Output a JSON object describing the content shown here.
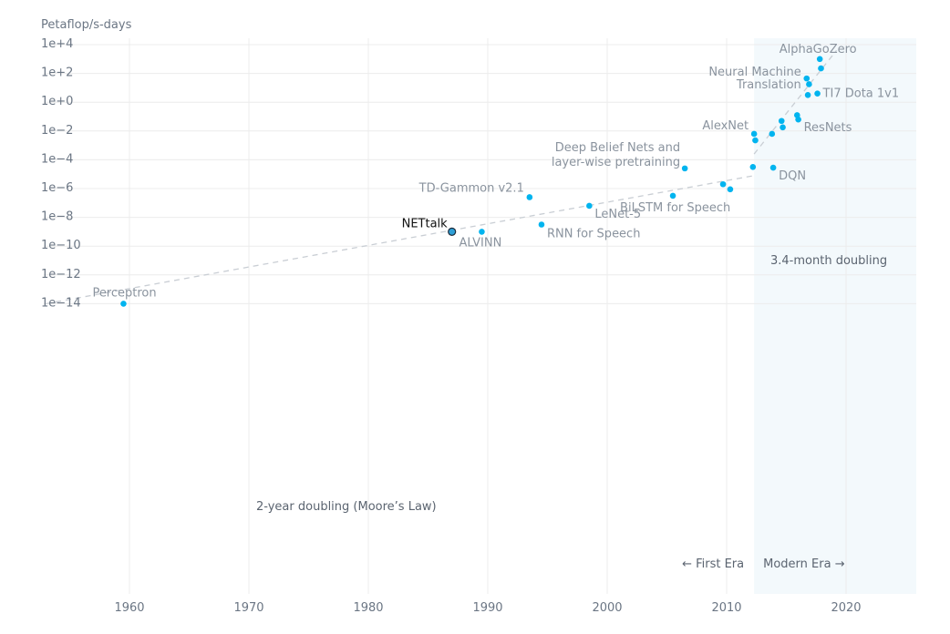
{
  "chart_data": {
    "type": "scatter",
    "y_unit_label": "Petaflop/s-days",
    "y_scale": "log10",
    "xlim": [
      1955,
      2026
    ],
    "ylim_exponent": [
      -14.5,
      4.2
    ],
    "x_ticks": [
      1960,
      1970,
      1980,
      1990,
      2000,
      2010,
      2020
    ],
    "x_tick_labels": [
      "1960",
      "1970",
      "1980",
      "1990",
      "2000",
      "2010",
      "2020"
    ],
    "y_tick_exponents": [
      4,
      2,
      0,
      -2,
      -4,
      -6,
      -8,
      -10,
      -12,
      -14
    ],
    "y_tick_labels": [
      "1e+4",
      "1e+2",
      "1e+0",
      "1e−2",
      "1e−4",
      "1e−6",
      "1e−8",
      "1e−10",
      "1e−12",
      "1e−14"
    ],
    "grid": true,
    "modern_era_start": 2012.3,
    "era_labels": {
      "first": "First Era",
      "modern": "Modern Era"
    },
    "trend_lines": [
      {
        "label": "2-year doubling (Moore’s Law)",
        "from": [
          1953,
          -14.0
        ],
        "to": [
          2012.3,
          -5.1
        ]
      },
      {
        "label": "3.4-month doubling",
        "from": [
          2012.3,
          -3.6
        ],
        "to": [
          2019.2,
          3.6
        ]
      }
    ],
    "points": [
      {
        "x": 1959.5,
        "y_exp": -14.0,
        "label": "Perceptron"
      },
      {
        "x": 1987.0,
        "y_exp": -9.0,
        "label": "NETtalk",
        "highlight": true
      },
      {
        "x": 1989.5,
        "y_exp": -9.0,
        "label": "ALVINN"
      },
      {
        "x": 1993.5,
        "y_exp": -6.6,
        "label": "TD-Gammon v2.1"
      },
      {
        "x": 1994.5,
        "y_exp": -8.5,
        "label": "RNN for Speech"
      },
      {
        "x": 1998.5,
        "y_exp": -7.2,
        "label": "LeNet-5"
      },
      {
        "x": 2005.5,
        "y_exp": -6.5,
        "label": "BiLSTM for Speech"
      },
      {
        "x": 2006.5,
        "y_exp": -4.6,
        "label": "Deep Belief Nets and layer-wise pretraining"
      },
      {
        "x": 2009.7,
        "y_exp": -5.7,
        "label": ""
      },
      {
        "x": 2010.3,
        "y_exp": -6.05,
        "label": ""
      },
      {
        "x": 2012.2,
        "y_exp": -4.5,
        "label": ""
      },
      {
        "x": 2012.3,
        "y_exp": -2.2,
        "label": "AlexNet"
      },
      {
        "x": 2012.4,
        "y_exp": -2.65,
        "label": ""
      },
      {
        "x": 2013.8,
        "y_exp": -2.2,
        "label": ""
      },
      {
        "x": 2013.9,
        "y_exp": -4.55,
        "label": "DQN"
      },
      {
        "x": 2014.6,
        "y_exp": -1.3,
        "label": ""
      },
      {
        "x": 2014.7,
        "y_exp": -1.75,
        "label": ""
      },
      {
        "x": 2015.9,
        "y_exp": -0.9,
        "label": ""
      },
      {
        "x": 2016.0,
        "y_exp": -1.2,
        "label": "ResNets"
      },
      {
        "x": 2016.7,
        "y_exp": 1.65,
        "label": "Neural Machine Translation"
      },
      {
        "x": 2016.8,
        "y_exp": 0.5,
        "label": ""
      },
      {
        "x": 2016.9,
        "y_exp": 1.25,
        "label": ""
      },
      {
        "x": 2017.6,
        "y_exp": 0.6,
        "label": "TI7 Dota 1v1"
      },
      {
        "x": 2017.8,
        "y_exp": 3.0,
        "label": "AlphaGoZero"
      },
      {
        "x": 2017.9,
        "y_exp": 2.35,
        "label": ""
      }
    ],
    "colors": {
      "point": "#00b4ef",
      "highlight_fill": "#2e9fd6",
      "modern_bg": "#f3f9fc",
      "grid": "#ececec",
      "trend": "#c9ced4"
    }
  }
}
